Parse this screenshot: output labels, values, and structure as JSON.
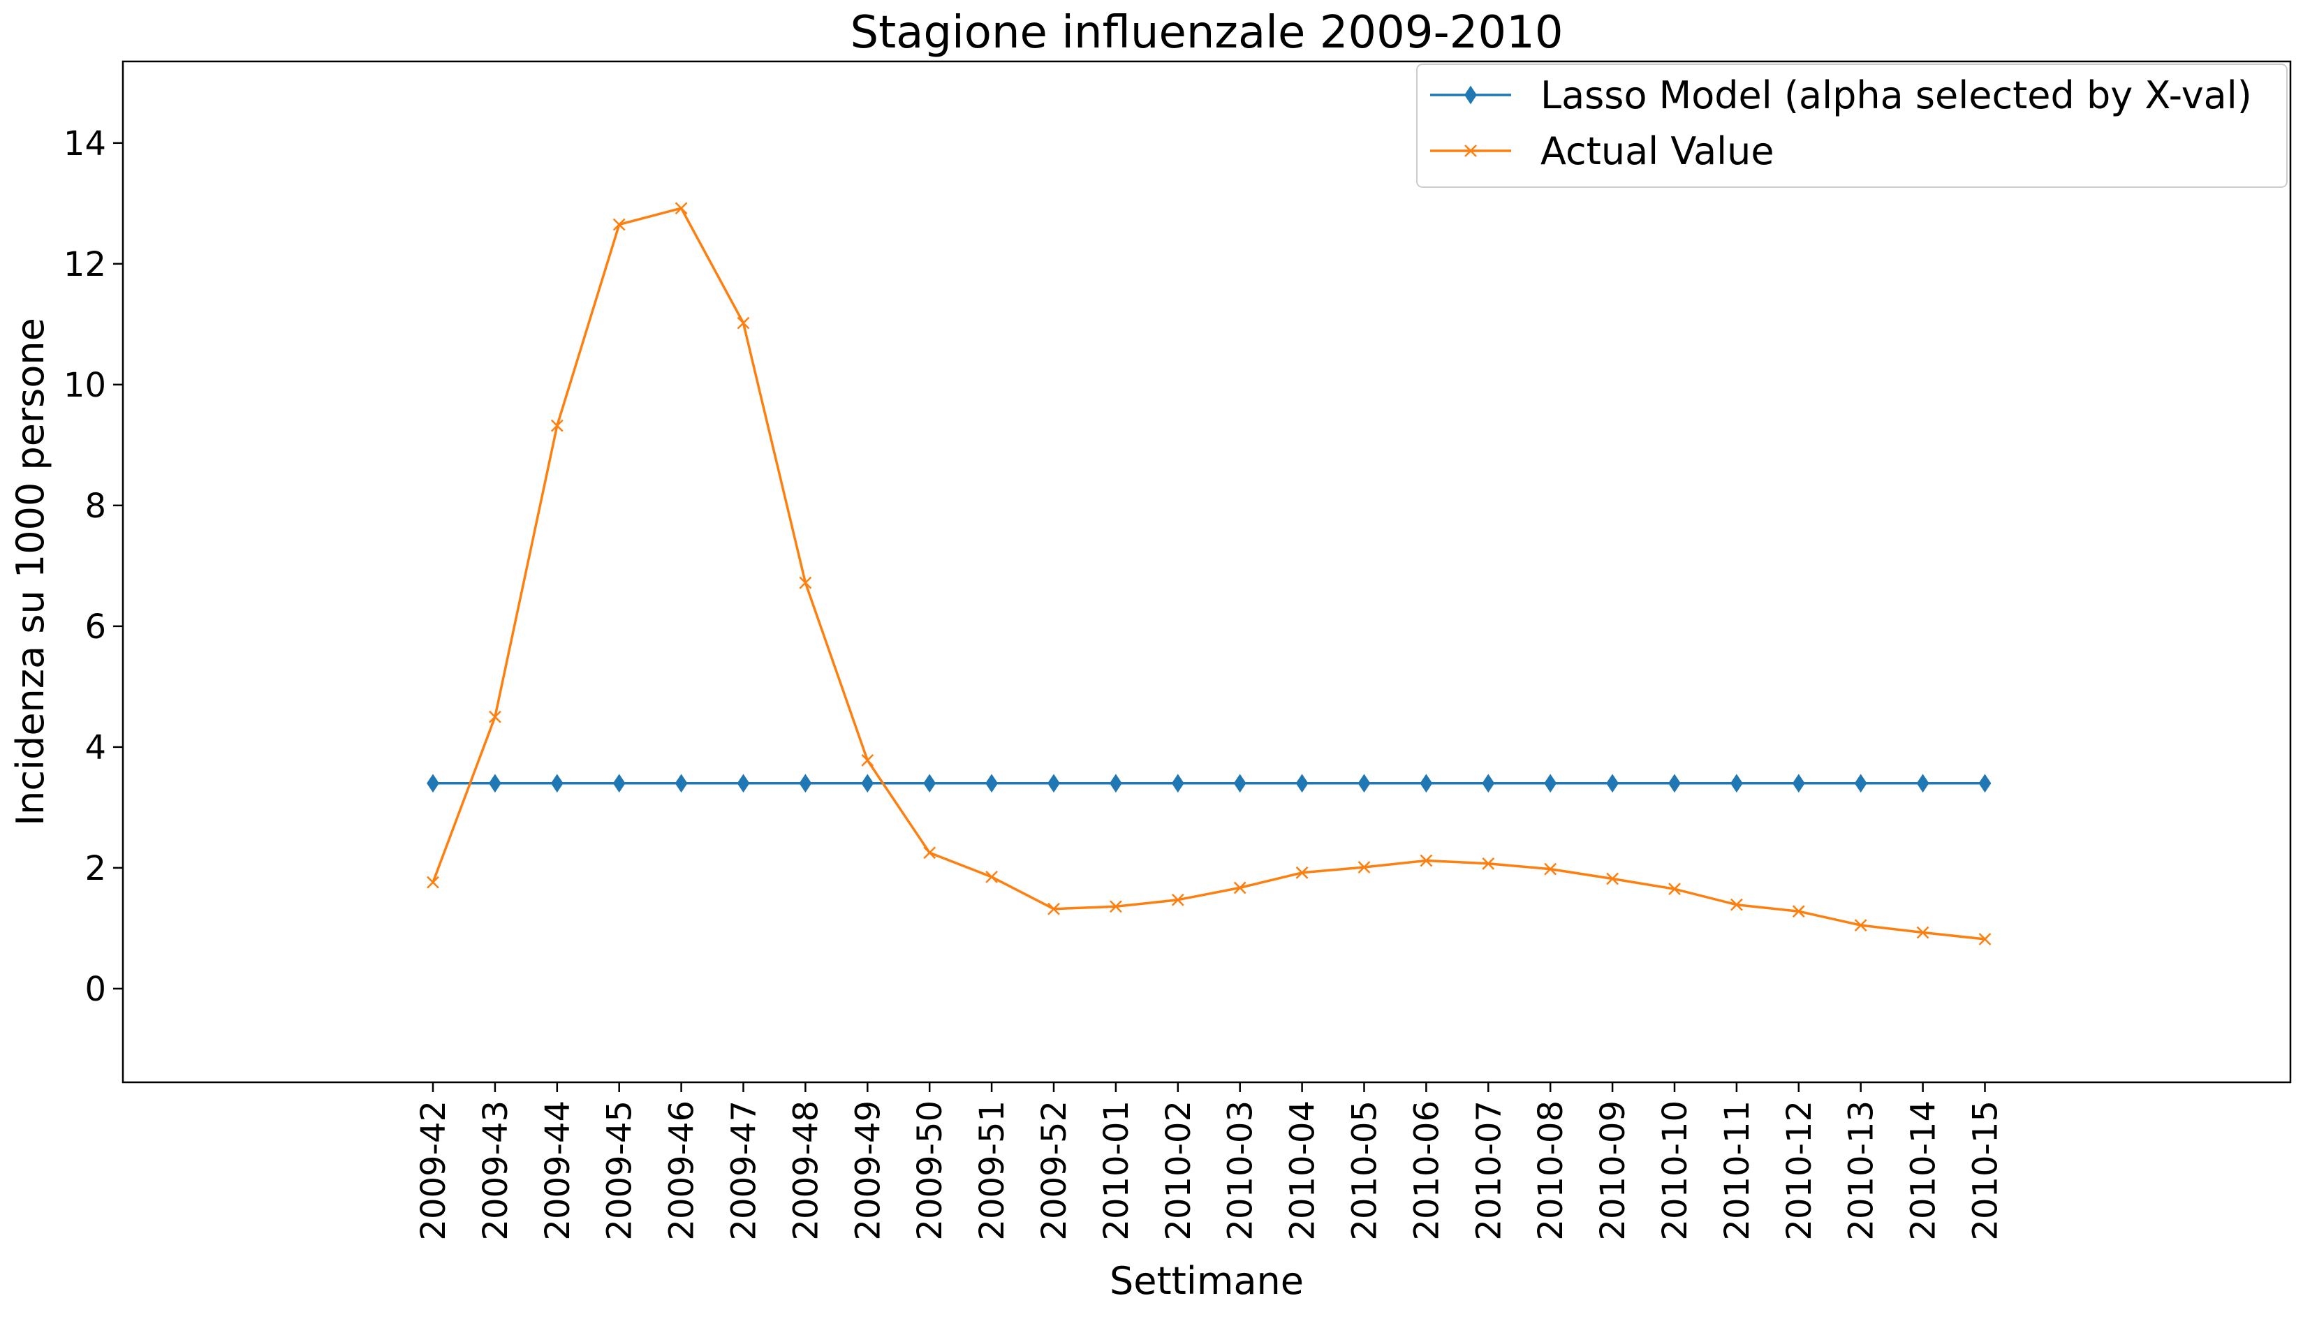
{
  "chart_data": {
    "type": "line",
    "title": "Stagione influenzale 2009-2010",
    "xlabel": "Settimane",
    "ylabel": "Incidenza su 1000 persone",
    "ylim": [
      -1.55,
      15.35
    ],
    "yticks": [
      0,
      2,
      4,
      6,
      8,
      10,
      12,
      14
    ],
    "grid": false,
    "legend_position": "top-right",
    "categories": [
      "2009-42",
      "2009-43",
      "2009-44",
      "2009-45",
      "2009-46",
      "2009-47",
      "2009-48",
      "2009-49",
      "2009-50",
      "2009-51",
      "2009-52",
      "2010-01",
      "2010-02",
      "2010-03",
      "2010-04",
      "2010-05",
      "2010-06",
      "2010-07",
      "2010-08",
      "2010-09",
      "2010-10",
      "2010-11",
      "2010-12",
      "2010-13",
      "2010-14",
      "2010-15"
    ],
    "series": [
      {
        "name": "Lasso Model (alpha selected by X-val)",
        "color": "#1f77b4",
        "marker": "thin-diamond",
        "values": [
          3.4,
          3.4,
          3.4,
          3.4,
          3.4,
          3.4,
          3.4,
          3.4,
          3.4,
          3.4,
          3.4,
          3.4,
          3.4,
          3.4,
          3.4,
          3.4,
          3.4,
          3.4,
          3.4,
          3.4,
          3.4,
          3.4,
          3.4,
          3.4,
          3.4,
          3.4
        ]
      },
      {
        "name": "Actual Value",
        "color": "#ff7f0e",
        "marker": "x",
        "values": [
          1.76,
          4.5,
          9.32,
          12.65,
          12.92,
          11.02,
          6.72,
          3.78,
          2.25,
          1.85,
          1.32,
          1.36,
          1.47,
          1.67,
          1.92,
          2.01,
          2.12,
          2.07,
          1.98,
          1.82,
          1.65,
          1.39,
          1.28,
          1.05,
          0.93,
          0.82
        ]
      }
    ]
  }
}
